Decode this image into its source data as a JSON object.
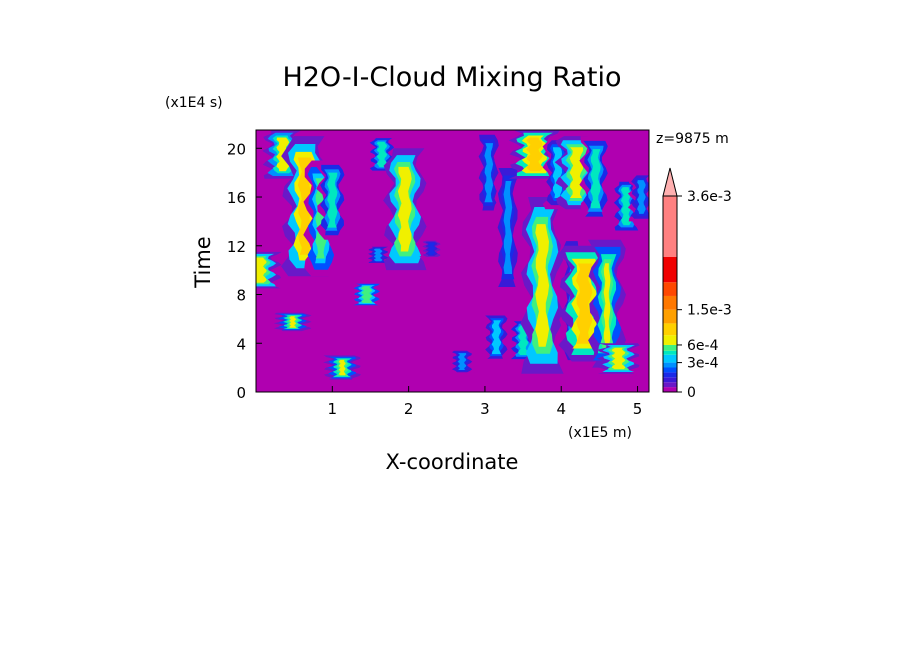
{
  "chart_data": {
    "type": "heatmap",
    "title": "H2O-I-Cloud Mixing Ratio",
    "xlabel": "X-coordinate",
    "ylabel": "Time",
    "x_scale_label": "(x1E5 m)",
    "y_scale_label": "(x1E4 s)",
    "annotation": "z=9875 m",
    "xlim": [
      0,
      5.15
    ],
    "ylim": [
      0,
      21.5
    ],
    "x_ticks": [
      "1",
      "2",
      "3",
      "4",
      "5"
    ],
    "y_ticks": [
      "0",
      "4",
      "8",
      "12",
      "16",
      "20"
    ],
    "x_tick_values": [
      1,
      2,
      3,
      4,
      5
    ],
    "y_tick_values": [
      0,
      4,
      8,
      12,
      16,
      20
    ],
    "colorbar": {
      "labels": [
        "0",
        "3e-4",
        "6e-4",
        "1.5e-3",
        "3.6e-3"
      ],
      "levels": [
        0,
        5e-05,
        0.0001,
        0.00015,
        0.0002,
        0.00025,
        0.0003,
        0.0004,
        0.0005,
        0.0006,
        0.0009,
        0.0012,
        0.0015,
        0.0018,
        0.0021,
        0.0024,
        0.0036
      ],
      "colors": [
        "#b000b0",
        "#6a18c8",
        "#3a1ad8",
        "#1a2ae8",
        "#0050ff",
        "#0090ff",
        "#00c8ff",
        "#00e8c0",
        "#40f080",
        "#f0f000",
        "#ffd000",
        "#ffa000",
        "#ff7800",
        "#ff4800",
        "#f00000",
        "#ff8080",
        "#ffb0b0"
      ],
      "max_arrow": true
    },
    "features": [
      {
        "x": 0.05,
        "t0": 8.5,
        "t1": 11.5,
        "peak": 0.0009
      },
      {
        "x": 0.35,
        "t0": 17.5,
        "t1": 21.5,
        "peak": 0.0008
      },
      {
        "x": 0.65,
        "t0": 9.5,
        "t1": 21.0,
        "peak": 0.0011
      },
      {
        "x": 0.85,
        "t0": 9.5,
        "t1": 19.0,
        "peak": 0.0006
      },
      {
        "x": 1.0,
        "t0": 12.5,
        "t1": 19.0,
        "peak": 0.0005
      },
      {
        "x": 0.48,
        "t0": 5.0,
        "t1": 6.5,
        "peak": 0.0007
      },
      {
        "x": 1.13,
        "t0": 1.0,
        "t1": 3.0,
        "peak": 0.0007
      },
      {
        "x": 1.45,
        "t0": 7.0,
        "t1": 9.0,
        "peak": 0.0006
      },
      {
        "x": 1.6,
        "t0": 10.5,
        "t1": 12.0,
        "peak": 0.0003
      },
      {
        "x": 1.65,
        "t0": 18.0,
        "t1": 21.0,
        "peak": 0.0005
      },
      {
        "x": 1.95,
        "t0": 10.0,
        "t1": 20.0,
        "peak": 0.0009
      },
      {
        "x": 2.3,
        "t0": 11.0,
        "t1": 12.5,
        "peak": 0.0002
      },
      {
        "x": 2.7,
        "t0": 1.5,
        "t1": 3.5,
        "peak": 0.0003
      },
      {
        "x": 3.05,
        "t0": 14.5,
        "t1": 21.5,
        "peak": 0.0003
      },
      {
        "x": 3.15,
        "t0": 2.5,
        "t1": 6.5,
        "peak": 0.0004
      },
      {
        "x": 3.3,
        "t0": 8.0,
        "t1": 19.0,
        "peak": 0.0003
      },
      {
        "x": 3.5,
        "t0": 2.5,
        "t1": 6.0,
        "peak": 0.0005
      },
      {
        "x": 3.65,
        "t0": 17.5,
        "t1": 21.5,
        "peak": 0.0012
      },
      {
        "x": 3.75,
        "t0": 1.5,
        "t1": 16.0,
        "peak": 0.0009
      },
      {
        "x": 3.95,
        "t0": 15.0,
        "t1": 21.0,
        "peak": 0.0004
      },
      {
        "x": 4.15,
        "t0": 2.0,
        "t1": 13.0,
        "peak": 0.0003
      },
      {
        "x": 4.2,
        "t0": 15.0,
        "t1": 21.0,
        "peak": 0.0009
      },
      {
        "x": 4.3,
        "t0": 2.5,
        "t1": 12.0,
        "peak": 0.0012
      },
      {
        "x": 4.45,
        "t0": 14.0,
        "t1": 21.0,
        "peak": 0.0005
      },
      {
        "x": 4.6,
        "t0": 2.0,
        "t1": 12.5,
        "peak": 0.0007
      },
      {
        "x": 4.75,
        "t0": 1.5,
        "t1": 4.0,
        "peak": 0.0009
      },
      {
        "x": 4.85,
        "t0": 13.0,
        "t1": 17.5,
        "peak": 0.0005
      },
      {
        "x": 5.05,
        "t0": 14.0,
        "t1": 18.0,
        "peak": 0.0003
      }
    ]
  }
}
